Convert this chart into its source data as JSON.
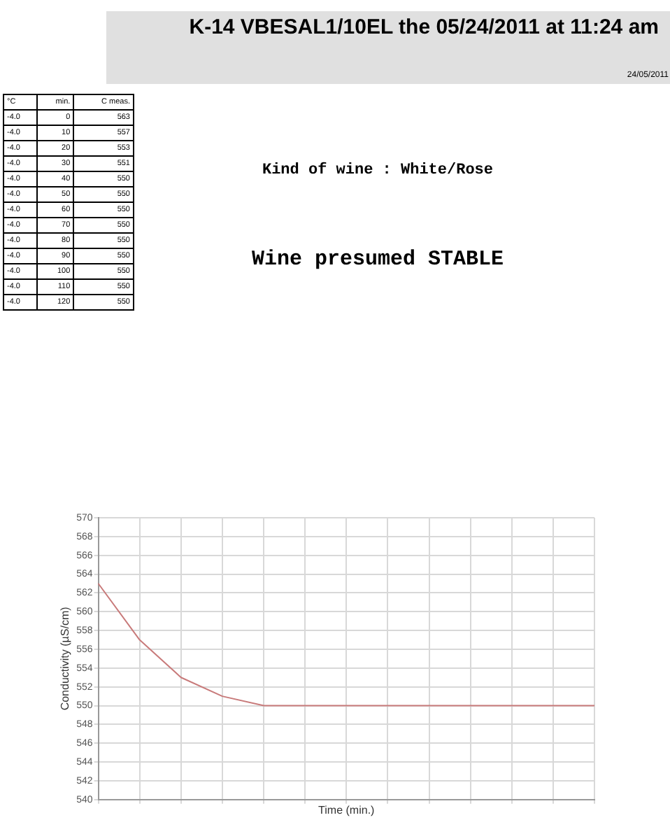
{
  "chart_data": {
    "type": "line",
    "title": "K-14 VBESAL1/10EL the 05/24/2011 at 11:24 am",
    "xlabel": "Time (min.)",
    "ylabel": "Conductivity (µS/cm)",
    "categories": [
      null,
      null,
      null,
      null,
      null,
      null,
      null,
      null,
      null,
      null,
      null,
      null,
      null
    ],
    "series": [
      {
        "color": "#c87a7a",
        "values": [
          563,
          557,
          553,
          551,
          550,
          550,
          550,
          550,
          550,
          550,
          550,
          550,
          550
        ]
      }
    ],
    "ylim": [
      540,
      570
    ],
    "yticks": [
      540,
      542,
      544,
      546,
      548,
      550,
      552,
      554,
      556,
      558,
      560,
      562,
      564,
      566,
      568,
      570
    ],
    "grid": true,
    "marker": "none",
    "line_style": "solid",
    "legend": false,
    "annotations": [
      "24/05/2011",
      "Kind of wine : White/Rose",
      "Wine presumed STABLE",
      "°C",
      "min.",
      "C meas.",
      "-4.0",
      "-4.0",
      "-4.0",
      "-4.0",
      "-4.0",
      "-4.0",
      "-4.0",
      "-4.0",
      "-4.0",
      "-4.0",
      "-4.0",
      "-4.0",
      "-4.0",
      "0",
      "10",
      "20",
      "30",
      "40",
      "50",
      "60",
      "70",
      "80",
      "90",
      "100",
      "110",
      "120",
      "563",
      "557",
      "553",
      "551",
      "550",
      "550",
      "550",
      "550",
      "550",
      "550",
      "550",
      "550",
      "550"
    ]
  }
}
